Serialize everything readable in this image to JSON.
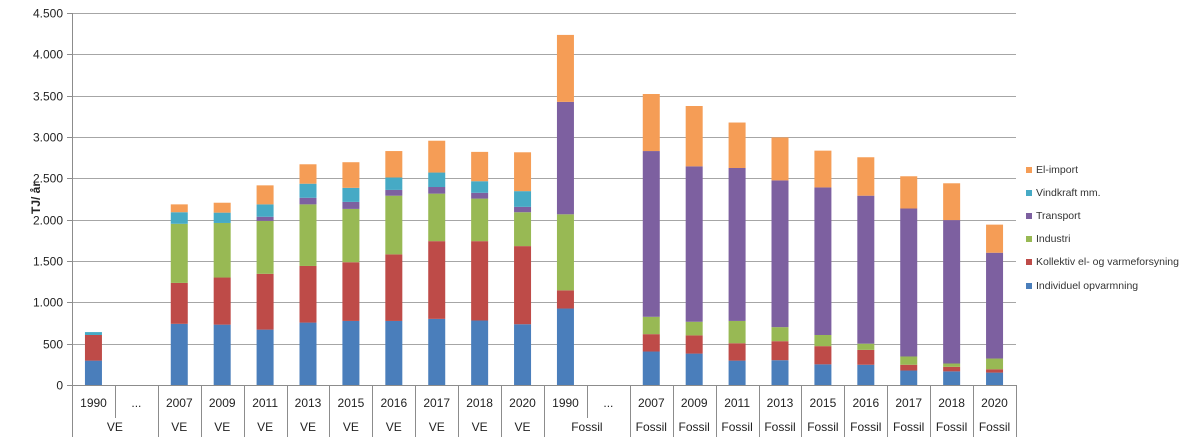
{
  "chart_data": {
    "type": "bar",
    "stacked": true,
    "title": "",
    "xlabel": "",
    "ylabel": "TJ/ år",
    "ylim": [
      0,
      4500
    ],
    "yticks": [
      0,
      500,
      1000,
      1500,
      2000,
      2500,
      3000,
      3500,
      4000,
      4500
    ],
    "ytick_labels": [
      "0",
      "500",
      "1.000",
      "1.500",
      "2.000",
      "2.500",
      "3.000",
      "3.500",
      "4.000",
      "4.500"
    ],
    "grid": true,
    "legend_position": "right",
    "categories": [
      {
        "year": "1990",
        "group": "VE"
      },
      {
        "year": "...",
        "group": "VE"
      },
      {
        "year": "2007",
        "group": "VE"
      },
      {
        "year": "2009",
        "group": "VE"
      },
      {
        "year": "2011",
        "group": "VE"
      },
      {
        "year": "2013",
        "group": "VE"
      },
      {
        "year": "2015",
        "group": "VE"
      },
      {
        "year": "2016",
        "group": "VE"
      },
      {
        "year": "2017",
        "group": "VE"
      },
      {
        "year": "2018",
        "group": "VE"
      },
      {
        "year": "2020",
        "group": "VE"
      },
      {
        "year": "1990",
        "group": "Fossil"
      },
      {
        "year": "...",
        "group": "Fossil"
      },
      {
        "year": "2007",
        "group": "Fossil"
      },
      {
        "year": "2009",
        "group": "Fossil"
      },
      {
        "year": "2011",
        "group": "Fossil"
      },
      {
        "year": "2013",
        "group": "Fossil"
      },
      {
        "year": "2015",
        "group": "Fossil"
      },
      {
        "year": "2016",
        "group": "Fossil"
      },
      {
        "year": "2017",
        "group": "Fossil"
      },
      {
        "year": "2018",
        "group": "Fossil"
      },
      {
        "year": "2020",
        "group": "Fossil"
      }
    ],
    "group_labels": [
      {
        "label": "VE",
        "span": 2
      },
      {
        "label": "VE",
        "span": 1
      },
      {
        "label": "VE",
        "span": 1
      },
      {
        "label": "VE",
        "span": 1
      },
      {
        "label": "VE",
        "span": 1
      },
      {
        "label": "VE",
        "span": 1
      },
      {
        "label": "VE",
        "span": 1
      },
      {
        "label": "VE",
        "span": 1
      },
      {
        "label": "VE",
        "span": 1
      },
      {
        "label": "VE",
        "span": 1
      },
      {
        "label": "Fossil",
        "span": 2
      },
      {
        "label": "Fossil",
        "span": 1
      },
      {
        "label": "Fossil",
        "span": 1
      },
      {
        "label": "Fossil",
        "span": 1
      },
      {
        "label": "Fossil",
        "span": 1
      },
      {
        "label": "Fossil",
        "span": 1
      },
      {
        "label": "Fossil",
        "span": 1
      },
      {
        "label": "Fossil",
        "span": 1
      },
      {
        "label": "Fossil",
        "span": 1
      },
      {
        "label": "Fossil",
        "span": 1
      }
    ],
    "series": [
      {
        "name": "Individuel opvarmning",
        "color": "#4a7ebb",
        "values": [
          295,
          0,
          740,
          730,
          670,
          755,
          775,
          775,
          800,
          780,
          735,
          925,
          0,
          405,
          380,
          295,
          300,
          250,
          245,
          175,
          165,
          150
        ]
      },
      {
        "name": "Kollektiv el- og varmeforsyning",
        "color": "#be4b48",
        "values": [
          310,
          0,
          495,
          570,
          675,
          685,
          710,
          805,
          940,
          960,
          945,
          220,
          0,
          210,
          220,
          210,
          230,
          220,
          180,
          70,
          55,
          40
        ]
      },
      {
        "name": "Industri",
        "color": "#98b954",
        "values": [
          0,
          0,
          715,
          660,
          640,
          745,
          645,
          710,
          575,
          515,
          410,
          920,
          0,
          210,
          165,
          270,
          170,
          135,
          75,
          100,
          40,
          130
        ]
      },
      {
        "name": "Transport",
        "color": "#7d60a0",
        "values": [
          0,
          0,
          0,
          0,
          50,
          80,
          85,
          70,
          80,
          70,
          65,
          1360,
          0,
          2005,
          1880,
          1850,
          1775,
          1785,
          1790,
          1790,
          1735,
          1280
        ]
      },
      {
        "name": "Vindkraft mm.",
        "color": "#46aac5",
        "values": [
          35,
          0,
          140,
          125,
          150,
          170,
          170,
          150,
          175,
          140,
          190,
          0,
          0,
          0,
          0,
          0,
          0,
          0,
          0,
          0,
          0,
          0
        ]
      },
      {
        "name": "El-import",
        "color": "#f59d56",
        "values": [
          0,
          0,
          95,
          120,
          230,
          235,
          310,
          320,
          385,
          355,
          470,
          810,
          0,
          690,
          730,
          550,
          520,
          445,
          465,
          390,
          445,
          340
        ]
      }
    ],
    "legend_order": [
      "El-import",
      "Vindkraft mm.",
      "Transport",
      "Industri",
      "Kollektiv el- og varmeforsyning",
      "Individuel opvarmning"
    ]
  },
  "legend": [
    {
      "label": "El-import",
      "color": "#f59d56"
    },
    {
      "label": "Vindkraft mm.",
      "color": "#46aac5"
    },
    {
      "label": "Transport",
      "color": "#7d60a0"
    },
    {
      "label": "Industri",
      "color": "#98b954"
    },
    {
      "label": "Kollektiv el- og varmeforsyning",
      "color": "#be4b48"
    },
    {
      "label": "Individuel opvarmning",
      "color": "#4a7ebb"
    }
  ],
  "colors": {
    "grid": "#a6a6a6",
    "axis": "#8c8c8c"
  }
}
